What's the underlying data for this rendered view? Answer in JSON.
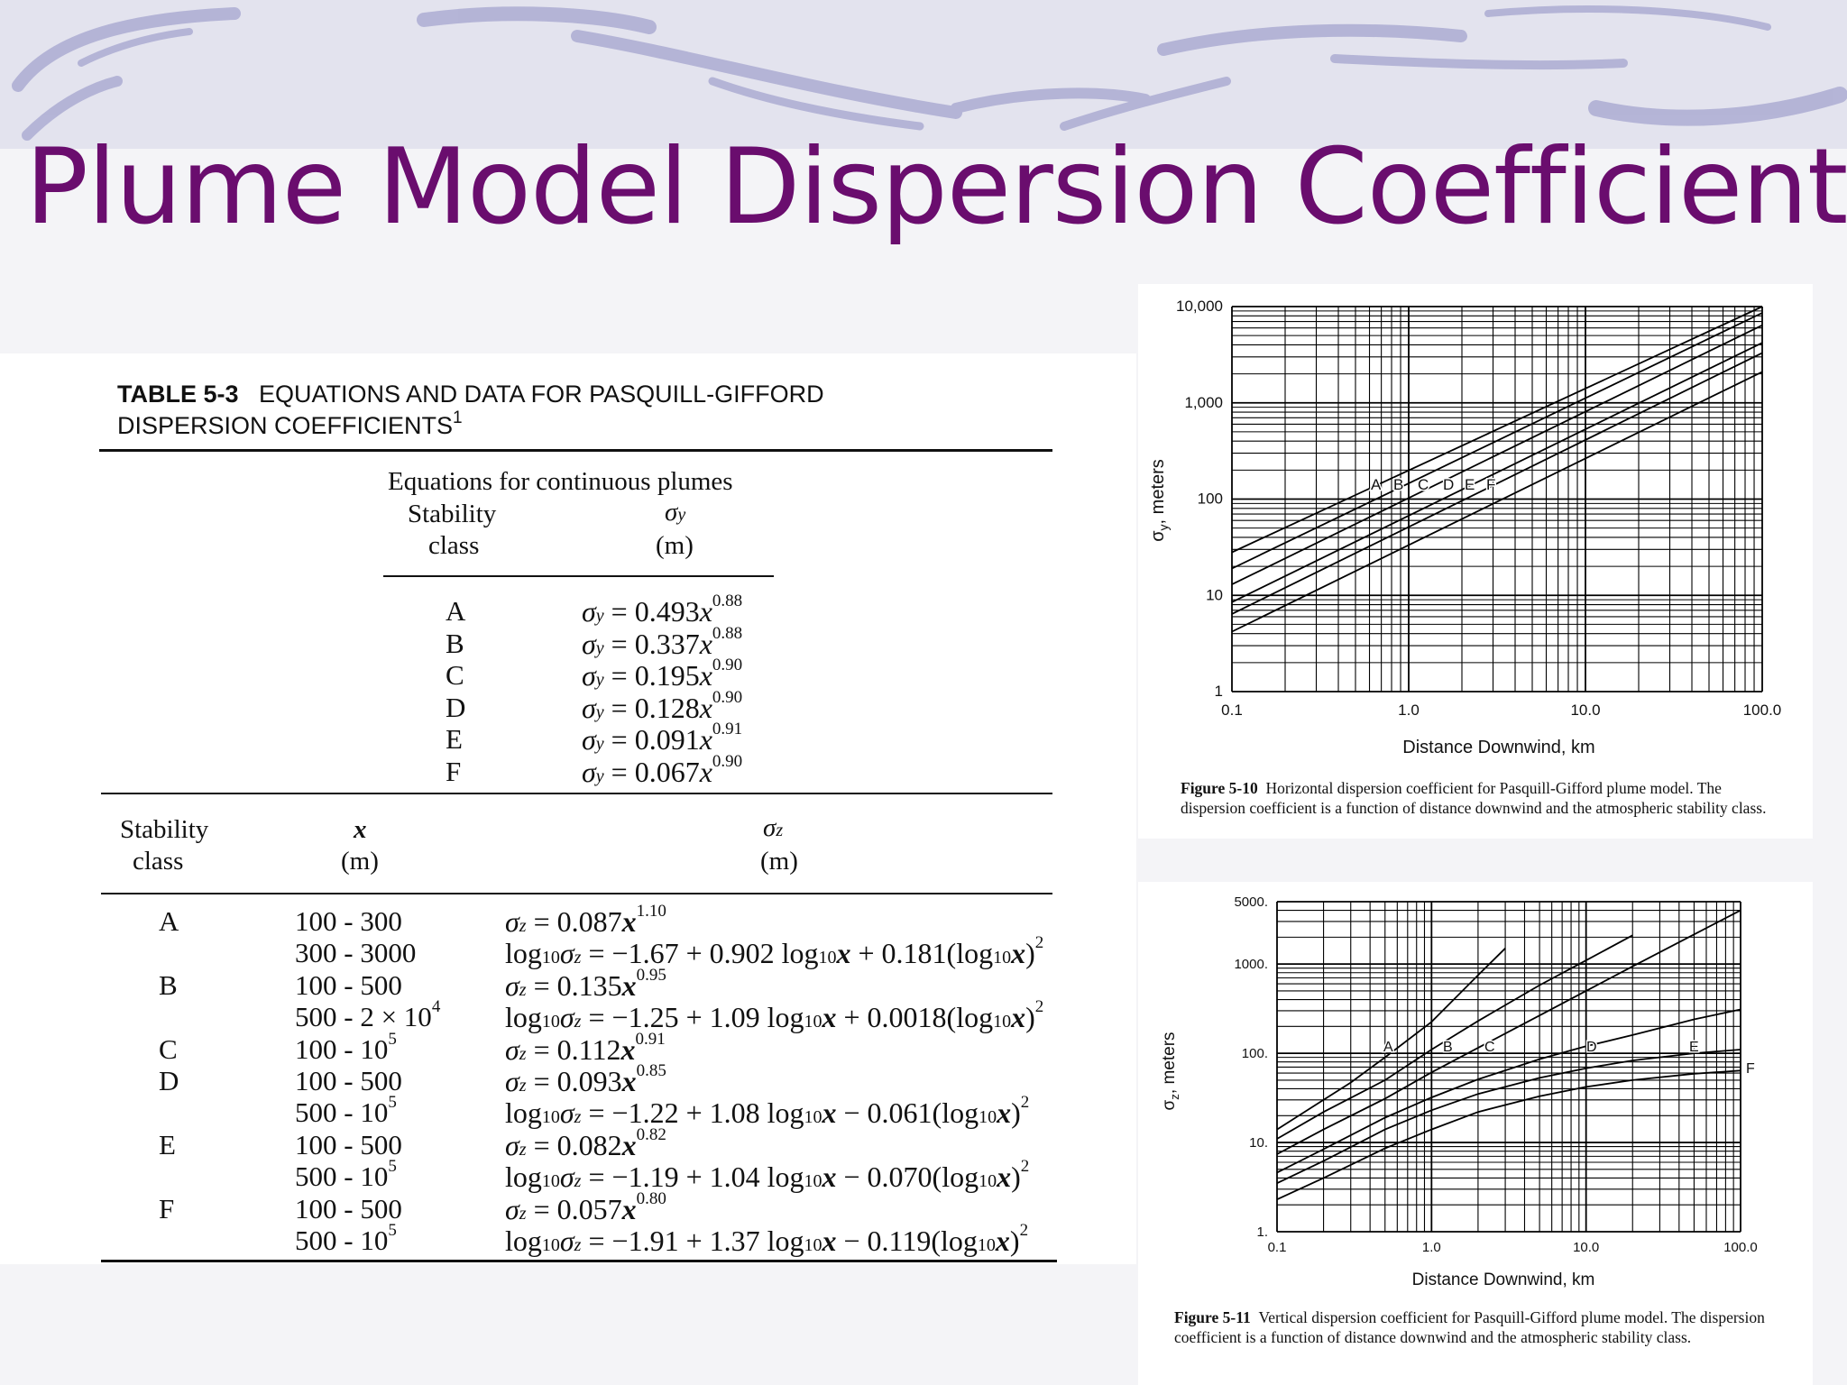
{
  "slide": {
    "title": "Plume Model Dispersion Coefficients"
  },
  "table": {
    "caption_label": "TABLE 5-3",
    "caption_text": "EQUATIONS AND DATA FOR PASQUILL-GIFFORD",
    "caption_line2": "DISPERSION COEFFICIENTS",
    "caption_footnote": "1",
    "section_title": "Equations for continuous plumes",
    "sy_head_class_1": "Stability",
    "sy_head_class_2": "class",
    "sy_head_symbol": "σ",
    "sy_head_symbol_sub": "y",
    "sy_head_unit": "(m)",
    "sy_rows": [
      {
        "cls": "A",
        "coef": "0.493",
        "exp": "0.88"
      },
      {
        "cls": "B",
        "coef": "0.337",
        "exp": "0.88"
      },
      {
        "cls": "C",
        "coef": "0.195",
        "exp": "0.90"
      },
      {
        "cls": "D",
        "coef": "0.128",
        "exp": "0.90"
      },
      {
        "cls": "E",
        "coef": "0.091",
        "exp": "0.91"
      },
      {
        "cls": "F",
        "coef": "0.067",
        "exp": "0.90"
      }
    ],
    "sz_head_class_1": "Stability",
    "sz_head_class_2": "class",
    "sz_head_x": "x",
    "sz_head_x_unit": "(m)",
    "sz_head_symbol": "σ",
    "sz_head_symbol_sub": "z",
    "sz_head_unit": "(m)",
    "sz_rows": [
      {
        "cls": "A",
        "range": "100 - 300",
        "eq": "σz = 0.087x^1.10"
      },
      {
        "cls": "",
        "range": "300 - 3000",
        "eq": "log10σz = −1.67 + 0.902 log10x + 0.181(log10x)^2"
      },
      {
        "cls": "B",
        "range": "100 - 500",
        "eq": "σz = 0.135x^0.95"
      },
      {
        "cls": "",
        "range": "500 - 2 × 10^4",
        "eq": "log10σz = −1.25 + 1.09 log10x + 0.0018(log10x)^2"
      },
      {
        "cls": "C",
        "range": "100 - 10^5",
        "eq": "σz = 0.112x^0.91"
      },
      {
        "cls": "D",
        "range": "100 - 500",
        "eq": "σz = 0.093x^0.85"
      },
      {
        "cls": "",
        "range": "500 - 10^5",
        "eq": "log10σz = −1.22 + 1.08 log10x − 0.061(log10x)^2"
      },
      {
        "cls": "E",
        "range": "100 - 500",
        "eq": "σz = 0.082x^0.82"
      },
      {
        "cls": "",
        "range": "500 - 10^5",
        "eq": "log10σz = −1.19 + 1.04 log10x − 0.070(log10x)^2"
      },
      {
        "cls": "F",
        "range": "100 - 500",
        "eq": "σz = 0.057x^0.80"
      },
      {
        "cls": "",
        "range": "500 - 10^5",
        "eq": "log10σz = −1.91 + 1.37 log10x − 0.119(log10x)^2"
      }
    ]
  },
  "fig1": {
    "caption_label": "Figure 5-10",
    "caption_text": "Horizontal dispersion coefficient for Pasquill-Gifford plume model. The dispersion coefficient is a function of distance downwind and the atmospheric stability class."
  },
  "fig2": {
    "caption_label": "Figure 5-11",
    "caption_text": "Vertical dispersion coefficient for Pasquill-Gifford plume model. The dispersion coefficient is a function of distance downwind and the atmospheric stability class."
  },
  "chart_data": [
    {
      "type": "line",
      "xlabel": "Distance Downwind, km",
      "ylabel": "σy, meters",
      "x_scale": "log",
      "y_scale": "log",
      "xlim": [
        0.1,
        100
      ],
      "ylim": [
        1,
        10000
      ],
      "x_ticks": [
        "0.1",
        "1.0",
        "10.0",
        "100.0"
      ],
      "y_ticks": [
        "1",
        "10",
        "100",
        "1,000",
        "10,000"
      ],
      "grid": true,
      "curve_labels": [
        "A",
        "B",
        "C",
        "D",
        "E",
        "F"
      ],
      "series": [
        {
          "name": "A",
          "x": [
            0.1,
            100
          ],
          "y": [
            28,
            12500
          ]
        },
        {
          "name": "B",
          "x": [
            0.1,
            100
          ],
          "y": [
            19,
            8600
          ]
        },
        {
          "name": "C",
          "x": [
            0.1,
            100
          ],
          "y": [
            13,
            6400
          ]
        },
        {
          "name": "D",
          "x": [
            0.1,
            100
          ],
          "y": [
            8.5,
            4200
          ]
        },
        {
          "name": "E",
          "x": [
            0.1,
            100
          ],
          "y": [
            6.4,
            3300
          ]
        },
        {
          "name": "F",
          "x": [
            0.1,
            100
          ],
          "y": [
            4.2,
            2100
          ]
        }
      ]
    },
    {
      "type": "line",
      "xlabel": "Distance Downwind, km",
      "ylabel": "σz, meters",
      "x_scale": "log",
      "y_scale": "log",
      "xlim": [
        0.1,
        100
      ],
      "ylim": [
        1,
        5000
      ],
      "x_ticks": [
        "0.1",
        "1.0",
        "10.0",
        "100.0"
      ],
      "y_ticks": [
        "1.",
        "10.",
        "100.",
        "1000.",
        "5000."
      ],
      "grid": true,
      "curve_labels": [
        "A",
        "B",
        "C",
        "D",
        "E",
        "F"
      ],
      "series": [
        {
          "name": "A",
          "x": [
            0.1,
            0.2,
            0.3,
            0.5,
            1,
            2,
            3
          ],
          "y": [
            14,
            30,
            47,
            90,
            225,
            750,
            1500
          ]
        },
        {
          "name": "B",
          "x": [
            0.1,
            0.2,
            0.5,
            1,
            2,
            5,
            10,
            20
          ],
          "y": [
            11,
            22,
            50,
            110,
            230,
            580,
            1100,
            2100
          ]
        },
        {
          "name": "C",
          "x": [
            0.1,
            0.2,
            0.5,
            1,
            2,
            5,
            10,
            20,
            50,
            100
          ],
          "y": [
            7.4,
            14,
            31,
            61,
            115,
            265,
            500,
            940,
            2150,
            4000
          ]
        },
        {
          "name": "D",
          "x": [
            0.1,
            0.2,
            0.5,
            1,
            2,
            5,
            10,
            20,
            50,
            100
          ],
          "y": [
            4.6,
            8.4,
            19,
            32,
            51,
            86,
            120,
            160,
            240,
            310
          ]
        },
        {
          "name": "E",
          "x": [
            0.1,
            0.2,
            0.5,
            1,
            2,
            5,
            10,
            20,
            50,
            100
          ],
          "y": [
            3.5,
            6.2,
            14,
            23,
            35,
            53,
            68,
            83,
            100,
            110
          ]
        },
        {
          "name": "F",
          "x": [
            0.1,
            0.2,
            0.5,
            1,
            2,
            5,
            10,
            20,
            50,
            100
          ],
          "y": [
            2.3,
            4,
            8.6,
            14,
            22,
            33,
            42,
            50,
            59,
            64
          ]
        }
      ]
    }
  ]
}
